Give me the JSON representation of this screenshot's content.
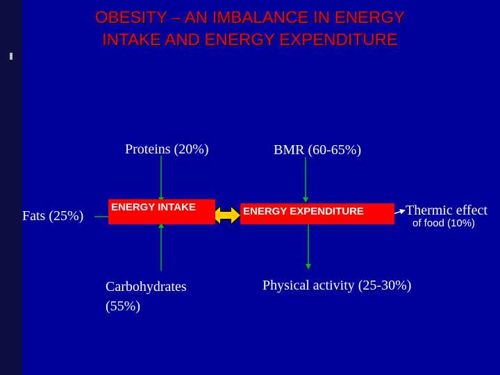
{
  "title": {
    "line1": "OBESITY – AN IMBALANCE IN ENERGY",
    "line2": "INTAKE AND ENERGY EXPENDITURE"
  },
  "intake": {
    "proteins": "Proteins (20%)",
    "fats": "Fats (25%)",
    "carbohydrates_line1": "Carbohydrates",
    "carbohydrates_line2": "(55%)",
    "box_label": "ENERGY INTAKE"
  },
  "expenditure": {
    "bmr": "BMR (60-65%)",
    "box_label": "ENERGY EXPENDITURE",
    "physical_activity": "Physical activity (25-30%)",
    "thermic_line1": "Thermic effect",
    "thermic_line2": "of food (10%)"
  },
  "colors": {
    "background": "#00009a",
    "title": "#ff0000",
    "box": "#ff0000",
    "balance_icon": "#ffcc00",
    "connector": "#00c000"
  },
  "icons": {
    "balance": "double-headed-arrow-icon"
  }
}
